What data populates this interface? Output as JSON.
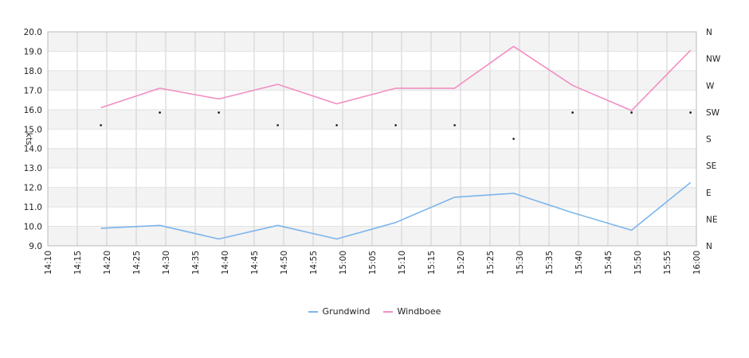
{
  "chart_data": {
    "type": "line",
    "title": "",
    "xlabel": "",
    "ylabel": "kts",
    "ylim": [
      9.0,
      20.0
    ],
    "y_ticks": [
      "9.0",
      "10.0",
      "11.0",
      "12.0",
      "13.0",
      "14.0",
      "15.0",
      "16.0",
      "17.0",
      "18.0",
      "19.0",
      "20.0"
    ],
    "x_ticks": [
      "14:10",
      "14:15",
      "14:20",
      "14:25",
      "14:30",
      "14:35",
      "14:40",
      "14:45",
      "14:50",
      "14:55",
      "15:00",
      "15:05",
      "15:10",
      "15:15",
      "15:20",
      "15:25",
      "15:30",
      "15:35",
      "15:40",
      "15:45",
      "15:50",
      "15:55",
      "16:00"
    ],
    "right_axis_labels": [
      "N",
      "NE",
      "E",
      "SE",
      "S",
      "SW",
      "W",
      "NW",
      "N"
    ],
    "grid": true,
    "legend_position": "bottom",
    "series": [
      {
        "name": "Grundwind",
        "color": "#7cb5ec",
        "x": [
          "14:19",
          "14:29",
          "14:39",
          "14:49",
          "14:59",
          "15:09",
          "15:19",
          "15:29",
          "15:39",
          "15:49",
          "15:59"
        ],
        "values": [
          9.9,
          10.05,
          9.35,
          10.05,
          9.35,
          10.2,
          11.5,
          11.7,
          10.7,
          9.8,
          12.25
        ]
      },
      {
        "name": "Windboee",
        "color": "#f28ec2",
        "x": [
          "14:19",
          "14:29",
          "14:39",
          "14:49",
          "14:59",
          "15:09",
          "15:19",
          "15:29",
          "15:39",
          "15:49",
          "15:59"
        ],
        "values": [
          16.1,
          17.1,
          16.55,
          17.3,
          16.3,
          17.1,
          17.1,
          19.25,
          17.25,
          15.95,
          19.05
        ]
      }
    ],
    "direction": {
      "x": [
        "14:19",
        "14:29",
        "14:39",
        "14:49",
        "14:59",
        "15:09",
        "15:19",
        "15:29",
        "15:39",
        "15:49",
        "15:59"
      ],
      "values": [
        "SSW",
        "WSW",
        "WSW",
        "SSW",
        "SSW",
        "SSW",
        "SSW",
        "S",
        "WSW",
        "WSW",
        "WSW"
      ],
      "y_values": [
        15.2,
        15.85,
        15.85,
        15.2,
        15.2,
        15.2,
        15.2,
        14.5,
        15.85,
        15.85,
        15.85
      ]
    }
  }
}
